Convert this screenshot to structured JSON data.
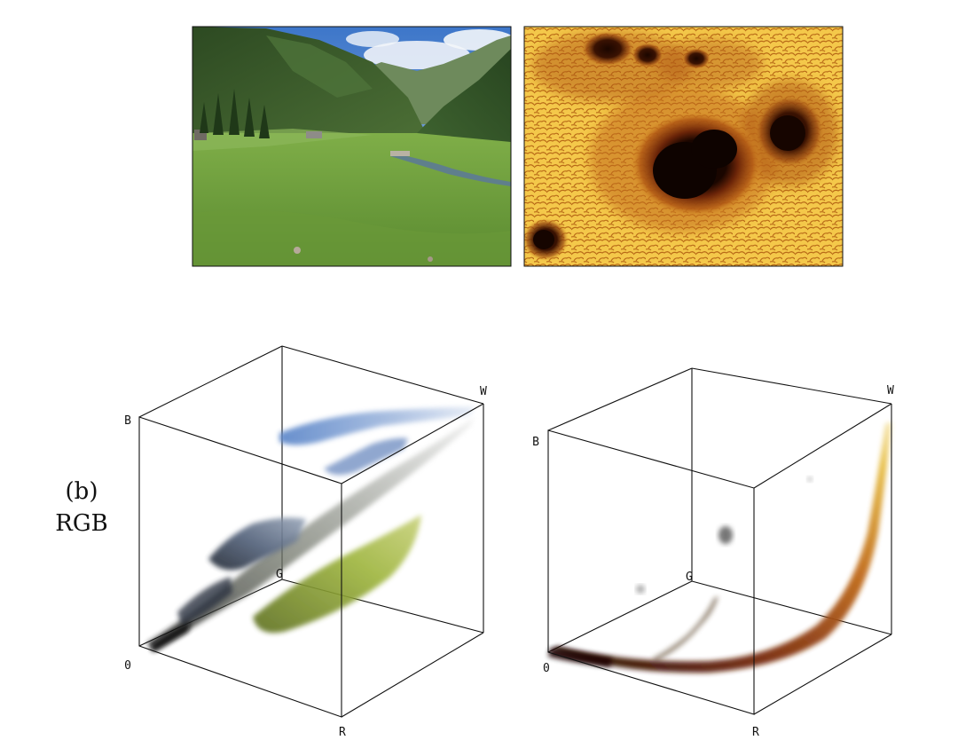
{
  "panel_label": "(b)",
  "space_label": "RGB",
  "left_cube": {
    "corner_labels": {
      "black": "0",
      "blue": "B",
      "white": "W",
      "green": "G",
      "red": "R"
    }
  },
  "right_cube": {
    "corner_labels": {
      "black": "0",
      "blue": "B",
      "white": "W",
      "green": "G",
      "red": "R"
    }
  },
  "colors": {
    "sky": "#5f93d6",
    "cloud": "#e9eef6",
    "meadow": "#6f9c3f",
    "forest": "#2f4a26",
    "mountain_shade": "#4f6a40",
    "solar_granule": "#f2c041",
    "solar_dark": "#7a2c0a",
    "sunspot_core": "#1a0600",
    "cloud_blue": "#6d8fc4",
    "cloud_slate": "#4f5f78",
    "cloud_olive": "#8da23a",
    "curve_brown": "#7b2d0e",
    "curve_yellow": "#e4b63a"
  }
}
